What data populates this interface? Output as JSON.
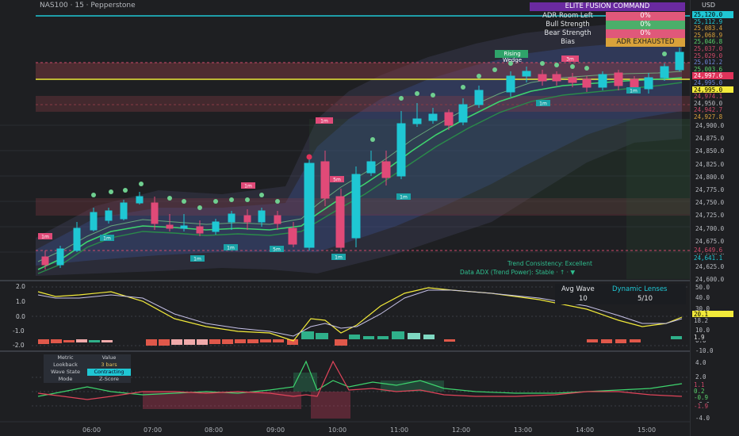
{
  "symbol": "NAS100 · 15 · Pepperstone",
  "currency": "USD",
  "price_axis": [
    "24,900.0",
    "24,875.0",
    "24,850.0",
    "24,825.0",
    "24,800.0",
    "24,775.0",
    "24,750.0",
    "24,725.0",
    "24,700.0",
    "24,675.0",
    "24,650.0",
    "24,625.0",
    "24,600.0"
  ],
  "price_tags": [
    {
      "text": "25,120.0",
      "bg": "#1fc7d4",
      "fg": "#000"
    },
    {
      "text": "25,112.9",
      "bg": "#1e1f22",
      "fg": "#1fc7d4"
    },
    {
      "text": "25,083.4",
      "bg": "#1e1f22",
      "fg": "#d8a03a"
    },
    {
      "text": "25,068.9",
      "bg": "#1e1f22",
      "fg": "#d8a03a"
    },
    {
      "text": "25,046.8",
      "bg": "#1e1f22",
      "fg": "#5ad06a"
    },
    {
      "text": "25,037.0",
      "bg": "#1e1f22",
      "fg": "#cf4a6a"
    },
    {
      "text": "25,029.0",
      "bg": "#1e1f22",
      "fg": "#cf4a6a"
    },
    {
      "text": "25,012.2",
      "bg": "#1e1f22",
      "fg": "#6f86d8"
    },
    {
      "text": "25,003.6",
      "bg": "#1e1f22",
      "fg": "#5ad06a"
    },
    {
      "text": "24,997.6",
      "bg": "#e0335a",
      "fg": "#fff"
    },
    {
      "text": "24,995.0",
      "bg": "#1e1f22",
      "fg": "#6f86d8"
    },
    {
      "text": "24,995.0",
      "bg": "#f2ea3a",
      "fg": "#000"
    },
    {
      "text": "24,974.1",
      "bg": "#1e1f22",
      "fg": "#cf4a6a"
    },
    {
      "text": "24,950.0",
      "bg": "#1e1f22",
      "fg": "#b9bcc2"
    },
    {
      "text": "24,942.7",
      "bg": "#1e1f22",
      "fg": "#cf4a6a"
    },
    {
      "text": "24,927.8",
      "bg": "#1e1f22",
      "fg": "#d8a03a"
    }
  ],
  "lower_tags": [
    {
      "text": "24,649.6",
      "bg": "#1e1f22",
      "fg": "#cf4a6a"
    },
    {
      "text": "24,641.1",
      "bg": "#1e1f22",
      "fg": "#1fc7d4"
    }
  ],
  "fusion_table": {
    "title": "ELITE FUSION COMMAND",
    "rows": [
      {
        "label": "ADR Room Left",
        "value": "0%",
        "bg": "#e0587a"
      },
      {
        "label": "Bull Strength",
        "value": "0%",
        "bg": "#4cae6a"
      },
      {
        "label": "Bear Strength",
        "value": "0%",
        "bg": "#e0587a"
      },
      {
        "label": "Bias",
        "value": "ADR EXHAUSTED",
        "bg": "#d9a23a"
      }
    ]
  },
  "pattern_label": "Rising Wedge",
  "trend_note_1": "Trend Consistency: Excellent",
  "trend_note_2": "Data ADX (Trend Power): Stable  ·  ↑  ·  ▼",
  "wave_box": {
    "col1_head": "Avg Wave",
    "col2_head": "Dynamic Lenses",
    "col1_val": "10",
    "col2_val": "5/10"
  },
  "osc_axis": [
    "2.0",
    "1.0",
    "0.0",
    "-1.0",
    "-2.0"
  ],
  "osc_right_axis": [
    "50.0",
    "40.0",
    "30.0",
    "20.0",
    "10.0",
    "0.0",
    "-10.0"
  ],
  "osc_tags": [
    {
      "text": "20.1",
      "bg": "#f2ea3a",
      "fg": "#000"
    },
    {
      "text": "18.2",
      "bg": "#1e1f22",
      "fg": "#b9bcc2"
    },
    {
      "text": "1.9",
      "bg": "#1e1f22",
      "fg": "#ddd"
    }
  ],
  "metric_table": {
    "rows": [
      [
        "Metric",
        "Value"
      ],
      [
        "Lookback",
        "3 bars"
      ],
      [
        "Wave State",
        "Contracting"
      ],
      [
        "Mode",
        "Z-Score"
      ]
    ]
  },
  "z_axis": [
    "4.0",
    "2.0",
    "0.0",
    "-2.0",
    "-4.0"
  ],
  "z_tags": [
    {
      "text": "1.1",
      "fg": "#cf4a6a"
    },
    {
      "text": "0.2",
      "fg": "#5ad06a"
    },
    {
      "text": "-0.9",
      "fg": "#5ad06a"
    },
    {
      "text": "-1.9",
      "fg": "#cf4a6a"
    }
  ],
  "time_labels": [
    "06:00",
    "07:00",
    "08:00",
    "09:00",
    "10:00",
    "11:00",
    "12:00",
    "13:00",
    "14:00",
    "15:00"
  ],
  "tf_labels": [
    "1m",
    "1m",
    "1m",
    "1m",
    "1m",
    "5m",
    "1m",
    "1m",
    "1m",
    "1m",
    "3m",
    "5m"
  ]
}
